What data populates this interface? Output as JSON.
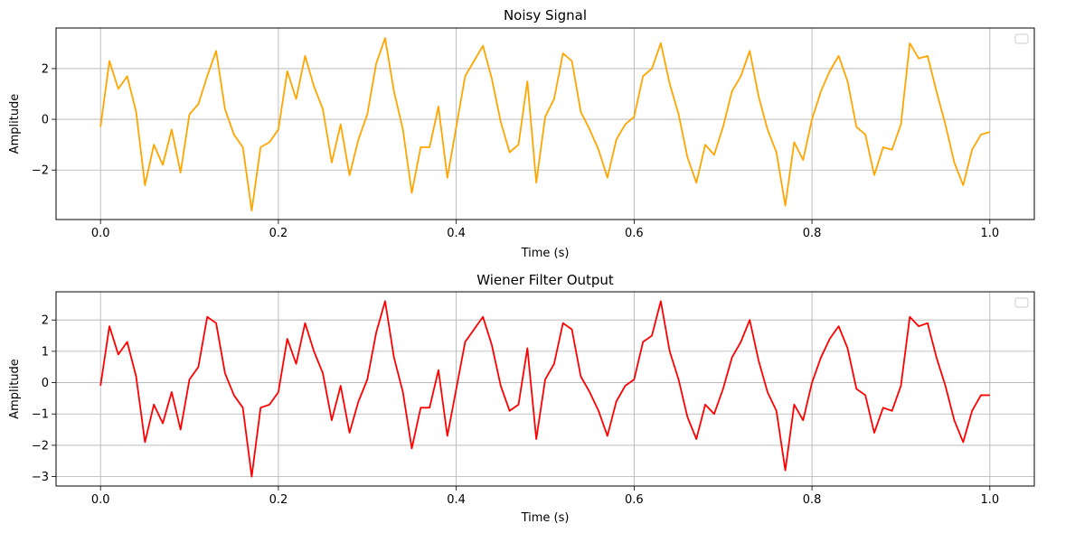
{
  "chart_data": [
    {
      "type": "line",
      "title": "Noisy Signal",
      "xlabel": "Time (s)",
      "ylabel": "Amplitude",
      "xlim": [
        -0.05,
        1.05
      ],
      "ylim": [
        -3.95,
        3.6
      ],
      "xticks": [
        0.0,
        0.2,
        0.4,
        0.6,
        0.8,
        1.0
      ],
      "xtick_labels": [
        "0.0",
        "0.2",
        "0.4",
        "0.6",
        "0.8",
        "1.0"
      ],
      "yticks": [
        -2,
        0,
        2
      ],
      "ytick_labels": [
        "−2",
        "0",
        "2"
      ],
      "grid": true,
      "legend": "top-right (empty)",
      "series": [
        {
          "color": "#FFA500",
          "x": [
            0.0,
            0.01,
            0.02,
            0.03,
            0.04,
            0.05,
            0.06,
            0.07,
            0.08,
            0.09,
            0.1,
            0.11,
            0.12,
            0.13,
            0.14,
            0.15,
            0.16,
            0.17,
            0.18,
            0.19,
            0.2,
            0.21,
            0.22,
            0.23,
            0.24,
            0.25,
            0.26,
            0.27,
            0.28,
            0.29,
            0.3,
            0.31,
            0.32,
            0.33,
            0.34,
            0.35,
            0.36,
            0.37,
            0.38,
            0.39,
            0.4,
            0.41,
            0.42,
            0.43,
            0.44,
            0.45,
            0.46,
            0.47,
            0.48,
            0.49,
            0.5,
            0.51,
            0.52,
            0.53,
            0.54,
            0.55,
            0.56,
            0.57,
            0.58,
            0.59,
            0.6,
            0.61,
            0.62,
            0.63,
            0.64,
            0.65,
            0.66,
            0.67,
            0.68,
            0.69,
            0.7,
            0.71,
            0.72,
            0.73,
            0.74,
            0.75,
            0.76,
            0.77,
            0.78,
            0.79,
            0.8,
            0.81,
            0.82,
            0.83,
            0.84,
            0.85,
            0.86,
            0.87,
            0.88,
            0.89,
            0.9,
            0.91,
            0.92,
            0.93,
            0.94,
            0.95,
            0.96,
            0.97,
            0.98,
            0.99,
            1.0
          ],
          "y": [
            -0.3,
            2.3,
            1.2,
            1.7,
            0.3,
            -2.6,
            -1.0,
            -1.8,
            -0.4,
            -2.1,
            0.2,
            0.6,
            1.7,
            2.7,
            0.4,
            -0.6,
            -1.1,
            -3.6,
            -1.1,
            -0.9,
            -0.4,
            1.9,
            0.8,
            2.5,
            1.3,
            0.4,
            -1.7,
            -0.2,
            -2.2,
            -0.8,
            0.2,
            2.2,
            3.2,
            1.1,
            -0.4,
            -2.9,
            -1.1,
            -1.1,
            0.5,
            -2.3,
            -0.3,
            1.7,
            2.3,
            2.9,
            1.6,
            -0.1,
            -1.3,
            -1.0,
            1.5,
            -2.5,
            0.1,
            0.8,
            2.6,
            2.3,
            0.3,
            -0.4,
            -1.2,
            -2.3,
            -0.8,
            -0.2,
            0.1,
            1.7,
            2.0,
            3.0,
            1.4,
            0.2,
            -1.5,
            -2.5,
            -1.0,
            -1.4,
            -0.3,
            1.1,
            1.7,
            2.7,
            0.9,
            -0.4,
            -1.3,
            -3.4,
            -0.9,
            -1.6,
            0.0,
            1.1,
            1.9,
            2.5,
            1.5,
            -0.3,
            -0.6,
            -2.2,
            -1.1,
            -1.2,
            -0.2,
            3.0,
            2.4,
            2.5,
            1.1,
            -0.2,
            -1.7,
            -2.6,
            -1.2,
            -0.6,
            -0.5
          ]
        }
      ]
    },
    {
      "type": "line",
      "title": "Wiener Filter Output",
      "xlabel": "Time (s)",
      "ylabel": "Amplitude",
      "xlim": [
        -0.05,
        1.05
      ],
      "ylim": [
        -3.3,
        2.9
      ],
      "xticks": [
        0.0,
        0.2,
        0.4,
        0.6,
        0.8,
        1.0
      ],
      "xtick_labels": [
        "0.0",
        "0.2",
        "0.4",
        "0.6",
        "0.8",
        "1.0"
      ],
      "yticks": [
        -3,
        -2,
        -1,
        0,
        1,
        2
      ],
      "ytick_labels": [
        "−3",
        "−2",
        "−1",
        "0",
        "1",
        "2"
      ],
      "grid": true,
      "legend": "top-right (empty)",
      "series": [
        {
          "color": "#FF0000",
          "x": [
            0.0,
            0.01,
            0.02,
            0.03,
            0.04,
            0.05,
            0.06,
            0.07,
            0.08,
            0.09,
            0.1,
            0.11,
            0.12,
            0.13,
            0.14,
            0.15,
            0.16,
            0.17,
            0.18,
            0.19,
            0.2,
            0.21,
            0.22,
            0.23,
            0.24,
            0.25,
            0.26,
            0.27,
            0.28,
            0.29,
            0.3,
            0.31,
            0.32,
            0.33,
            0.34,
            0.35,
            0.36,
            0.37,
            0.38,
            0.39,
            0.4,
            0.41,
            0.42,
            0.43,
            0.44,
            0.45,
            0.46,
            0.47,
            0.48,
            0.49,
            0.5,
            0.51,
            0.52,
            0.53,
            0.54,
            0.55,
            0.56,
            0.57,
            0.58,
            0.59,
            0.6,
            0.61,
            0.62,
            0.63,
            0.64,
            0.65,
            0.66,
            0.67,
            0.68,
            0.69,
            0.7,
            0.71,
            0.72,
            0.73,
            0.74,
            0.75,
            0.76,
            0.77,
            0.78,
            0.79,
            0.8,
            0.81,
            0.82,
            0.83,
            0.84,
            0.85,
            0.86,
            0.87,
            0.88,
            0.89,
            0.9,
            0.91,
            0.92,
            0.93,
            0.94,
            0.95,
            0.96,
            0.97,
            0.98,
            0.99,
            1.0
          ],
          "y": [
            -0.1,
            1.8,
            0.9,
            1.3,
            0.2,
            -1.9,
            -0.7,
            -1.3,
            -0.3,
            -1.5,
            0.1,
            0.5,
            2.1,
            1.9,
            0.3,
            -0.4,
            -0.8,
            -3.0,
            -0.8,
            -0.7,
            -0.3,
            1.4,
            0.6,
            1.9,
            1.0,
            0.3,
            -1.2,
            -0.1,
            -1.6,
            -0.6,
            0.1,
            1.6,
            2.6,
            0.8,
            -0.3,
            -2.1,
            -0.8,
            -0.8,
            0.4,
            -1.7,
            -0.2,
            1.3,
            1.7,
            2.1,
            1.2,
            -0.1,
            -0.9,
            -0.7,
            1.1,
            -1.8,
            0.1,
            0.6,
            1.9,
            1.7,
            0.2,
            -0.3,
            -0.9,
            -1.7,
            -0.6,
            -0.1,
            0.1,
            1.3,
            1.5,
            2.6,
            1.0,
            0.1,
            -1.1,
            -1.8,
            -0.7,
            -1.0,
            -0.2,
            0.8,
            1.3,
            2.0,
            0.7,
            -0.3,
            -0.9,
            -2.8,
            -0.7,
            -1.2,
            0.0,
            0.8,
            1.4,
            1.8,
            1.1,
            -0.2,
            -0.4,
            -1.6,
            -0.8,
            -0.9,
            -0.1,
            2.1,
            1.8,
            1.9,
            0.8,
            -0.1,
            -1.2,
            -1.9,
            -0.9,
            -0.4,
            -0.4
          ]
        }
      ]
    }
  ]
}
